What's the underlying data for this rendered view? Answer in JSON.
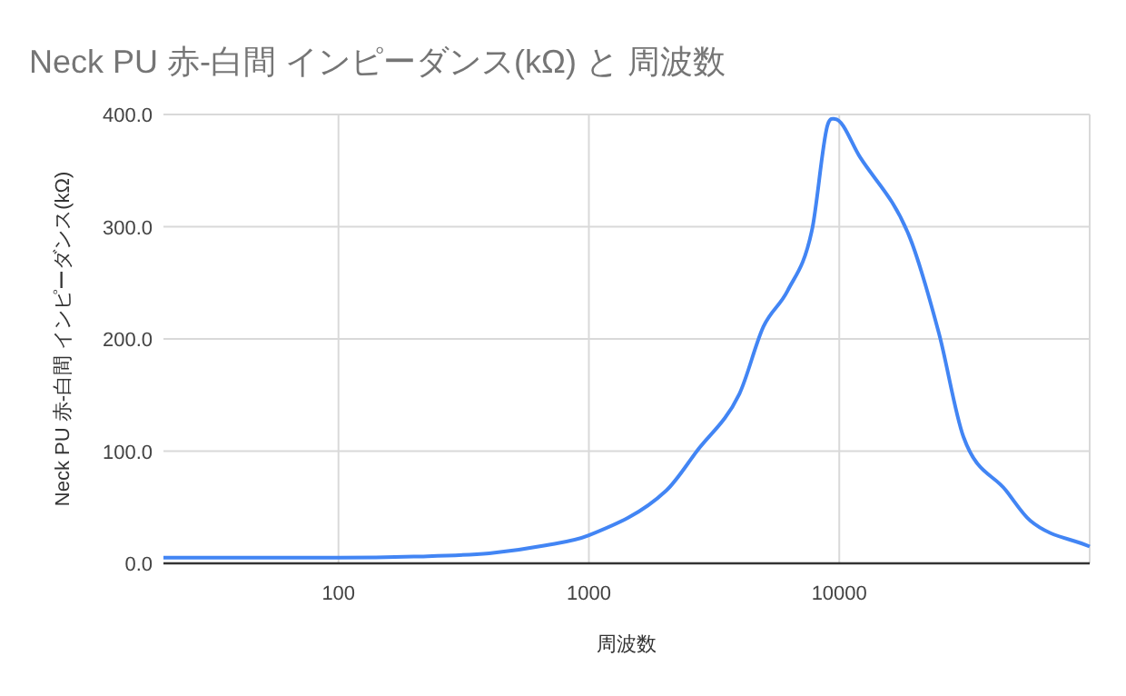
{
  "chart_data": {
    "type": "line",
    "title": "Neck PU 赤-白間 インピーダンス(kΩ) と 周波数",
    "xlabel": "周波数",
    "ylabel": "Neck PU 赤-白間 インピーダンス(kΩ)",
    "log": "x",
    "grid": true,
    "marker": "none",
    "line_style": "solid",
    "xlim": [
      20,
      100000
    ],
    "xticks": [
      100,
      1000,
      10000
    ],
    "ylim": [
      0,
      400
    ],
    "yticks": [
      {
        "value": 0,
        "label": "0.0"
      },
      {
        "value": 100,
        "label": "100.0"
      },
      {
        "value": 200,
        "label": "200.0"
      },
      {
        "value": 300,
        "label": "300.0"
      },
      {
        "value": 400,
        "label": "400.0"
      }
    ],
    "series": [
      {
        "color": "#4285f4",
        "x": [
          20,
          100,
          200,
          400,
          670,
          1000,
          2040,
          2700,
          3990,
          4980,
          6220,
          7780,
          8940,
          9610,
          12100,
          19000,
          25000,
          31300,
          46300,
          57900,
          100000
        ],
        "values": [
          5,
          5,
          6,
          9,
          16,
          25,
          65,
          100,
          151,
          211,
          243,
          297,
          389,
          396,
          362,
          292,
          205,
          113,
          65,
          38,
          15
        ]
      }
    ]
  }
}
